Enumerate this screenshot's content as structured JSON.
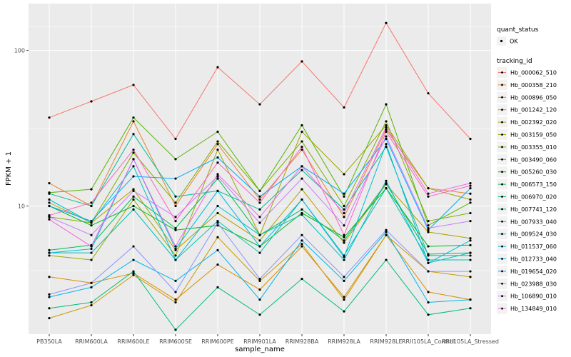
{
  "chart_data": {
    "type": "line",
    "xlabel": "sample_name",
    "ylabel": "FPKM + 1",
    "y_scale": "log10",
    "ylim": [
      1.5,
      200
    ],
    "y_ticks": [
      10,
      100
    ],
    "y_tick_labels": [
      "10",
      "100"
    ],
    "grid": true,
    "legend_position": "right",
    "categories": [
      "PB350LA",
      "RRIM600LA",
      "RRIM600LE",
      "RRIM600SE",
      "RRIM600PE",
      "RRIM901LA",
      "RRIM928BA",
      "RRIM928LA",
      "RRIM928LE",
      "RRII105LA_Control",
      "RRII105LA_Stressed"
    ],
    "quant_status_legend": {
      "title": "quant_status",
      "items": [
        "OK"
      ]
    },
    "tracking_legend_title": "tracking_id",
    "series": [
      {
        "name": "Hb_000062_510",
        "color": "#F8766D",
        "values": [
          37,
          47,
          60,
          27,
          78,
          45,
          85,
          43,
          150,
          53,
          27
        ]
      },
      {
        "name": "Hb_000358_210",
        "color": "#EA8331",
        "values": [
          14,
          10,
          35,
          10,
          25,
          11,
          23,
          8.5,
          31,
          13,
          12
        ]
      },
      {
        "name": "Hb_000896_050",
        "color": "#DB8E00",
        "values": [
          3.5,
          3.2,
          3.7,
          2.5,
          4.2,
          2.9,
          5.5,
          2.6,
          6.5,
          2.8,
          2.5
        ]
      },
      {
        "name": "Hb_001242_120",
        "color": "#C99800",
        "values": [
          1.9,
          2.3,
          3.6,
          2.4,
          6.3,
          3.3,
          5.7,
          2.5,
          6.5,
          3.8,
          3.5
        ]
      },
      {
        "name": "Hb_002392_020",
        "color": "#B3A000",
        "values": [
          10.5,
          7.8,
          12.8,
          5.2,
          9.0,
          6.0,
          12.8,
          5.8,
          13.8,
          6.8,
          6.2
        ]
      },
      {
        "name": "Hb_003159_050",
        "color": "#9DA700",
        "values": [
          4.8,
          4.5,
          11.0,
          4.8,
          23.0,
          6.5,
          30.0,
          16.0,
          33.0,
          13.0,
          11.0
        ]
      },
      {
        "name": "Hb_003355_010",
        "color": "#7FAE00",
        "values": [
          8.5,
          7.8,
          22.0,
          10.5,
          26.0,
          12.5,
          26.0,
          10.0,
          35.0,
          8.0,
          9.0
        ]
      },
      {
        "name": "Hb_003490_060",
        "color": "#53B400",
        "values": [
          12.2,
          12.8,
          37.0,
          20.0,
          30.0,
          12.5,
          33.0,
          11.5,
          45.0,
          7.5,
          10.5
        ]
      },
      {
        "name": "Hb_005260_030",
        "color": "#00B823",
        "values": [
          10.0,
          7.5,
          10.0,
          7.0,
          7.5,
          5.5,
          9.0,
          6.3,
          13.0,
          5.5,
          5.6
        ]
      },
      {
        "name": "Hb_006573_150",
        "color": "#00BC56",
        "values": [
          5.2,
          5.6,
          11.5,
          7.2,
          15.0,
          6.5,
          9.5,
          6.0,
          14.0,
          4.9,
          5.0
        ]
      },
      {
        "name": "Hb_006970_020",
        "color": "#00BD78",
        "values": [
          2.2,
          2.4,
          3.8,
          1.6,
          3.0,
          2.0,
          3.4,
          2.1,
          4.5,
          2.0,
          2.2
        ]
      },
      {
        "name": "Hb_007741_120",
        "color": "#00BF96",
        "values": [
          12.0,
          10.0,
          29.0,
          11.5,
          12.5,
          9.5,
          17.0,
          9.5,
          24.0,
          4.8,
          4.8
        ]
      },
      {
        "name": "Hb_007933_040",
        "color": "#00C0B0",
        "values": [
          5.0,
          5.0,
          9.5,
          4.5,
          8.0,
          5.0,
          11.0,
          4.8,
          13.0,
          4.5,
          4.5
        ]
      },
      {
        "name": "Hb_009524_030",
        "color": "#00BECA",
        "values": [
          11.0,
          7.8,
          18.0,
          4.5,
          10.0,
          6.5,
          8.8,
          4.5,
          14.5,
          4.3,
          5.0
        ]
      },
      {
        "name": "Hb_011537_060",
        "color": "#00BBE0",
        "values": [
          5.0,
          5.3,
          20.0,
          5.3,
          12.5,
          5.5,
          11.0,
          4.7,
          25.0,
          4.3,
          6.0
        ]
      },
      {
        "name": "Hb_012733_040",
        "color": "#00B5EE",
        "values": [
          2.6,
          3.0,
          4.5,
          3.3,
          5.2,
          2.5,
          6.0,
          3.3,
          6.8,
          2.4,
          2.5
        ]
      },
      {
        "name": "Hb_019654_020",
        "color": "#00ACFC",
        "values": [
          10.0,
          8.0,
          15.5,
          15.0,
          20.5,
          11.5,
          18.0,
          12.0,
          27.0,
          7.0,
          13.0
        ]
      },
      {
        "name": "Hb_023988_030",
        "color": "#8B93FF",
        "values": [
          2.7,
          3.2,
          5.5,
          2.8,
          7.8,
          3.4,
          6.5,
          3.5,
          7.0,
          3.8,
          3.8
        ]
      },
      {
        "name": "Hb_106890_010",
        "color": "#C77CFF",
        "values": [
          8.5,
          6.5,
          12.5,
          8.5,
          15.5,
          7.8,
          15.0,
          7.5,
          28.0,
          7.2,
          8.0
        ]
      },
      {
        "name": "Hb_134849_010",
        "color": "#F166E8",
        "values": [
          8.2,
          5.5,
          20.0,
          5.5,
          16.0,
          8.5,
          18.0,
          9.0,
          32.0,
          12.0,
          14.0
        ]
      },
      {
        "name": "",
        "color": "#FF61C3",
        "values": [
          8.7,
          10.5,
          23.0,
          8.0,
          19.0,
          10.5,
          24.0,
          6.5,
          30.0,
          11.5,
          13.5
        ]
      }
    ]
  }
}
